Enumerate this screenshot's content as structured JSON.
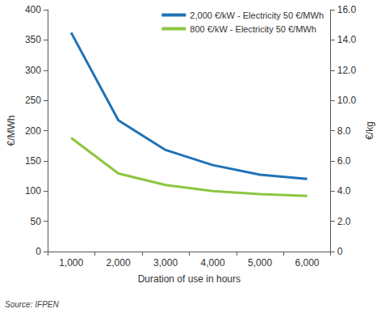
{
  "chart_data": {
    "type": "line",
    "xlabel": "Duration of use in hours",
    "ylabel": "€/MWh",
    "y2label": "€/kg",
    "annotations": [
      "Source: IFPEN"
    ],
    "categories": [
      "1,000",
      "2,000",
      "3,000",
      "4,000",
      "5,000",
      "6,000"
    ],
    "series": [
      {
        "name": "2,000 €/kW - Electricity 50 €/MWh",
        "color": "#1f72b8",
        "values": [
          362,
          217,
          168,
          143,
          127,
          120
        ]
      },
      {
        "name": "800 €/kW - Electricity 50 €/MWh",
        "color": "#8cc640",
        "values": [
          188,
          129,
          110,
          100,
          95,
          92
        ]
      }
    ],
    "ylim": [
      0,
      400
    ],
    "yticks": [
      0,
      50,
      100,
      150,
      200,
      250,
      300,
      350,
      400
    ],
    "y2lim": [
      0,
      16
    ],
    "y2ticks": [
      0,
      {
        "value": 2,
        "label": "2.0"
      },
      {
        "value": 4,
        "label": "4.0"
      },
      {
        "value": 6,
        "label": "6.0"
      },
      {
        "value": 8,
        "label": "8.0"
      },
      {
        "value": 10,
        "label": "10.0"
      },
      {
        "value": 12,
        "label": "12.0"
      },
      {
        "value": 14,
        "label": "14.0"
      },
      {
        "value": 16,
        "label": "16.0"
      }
    ],
    "grid": false,
    "legend": "upper right"
  }
}
